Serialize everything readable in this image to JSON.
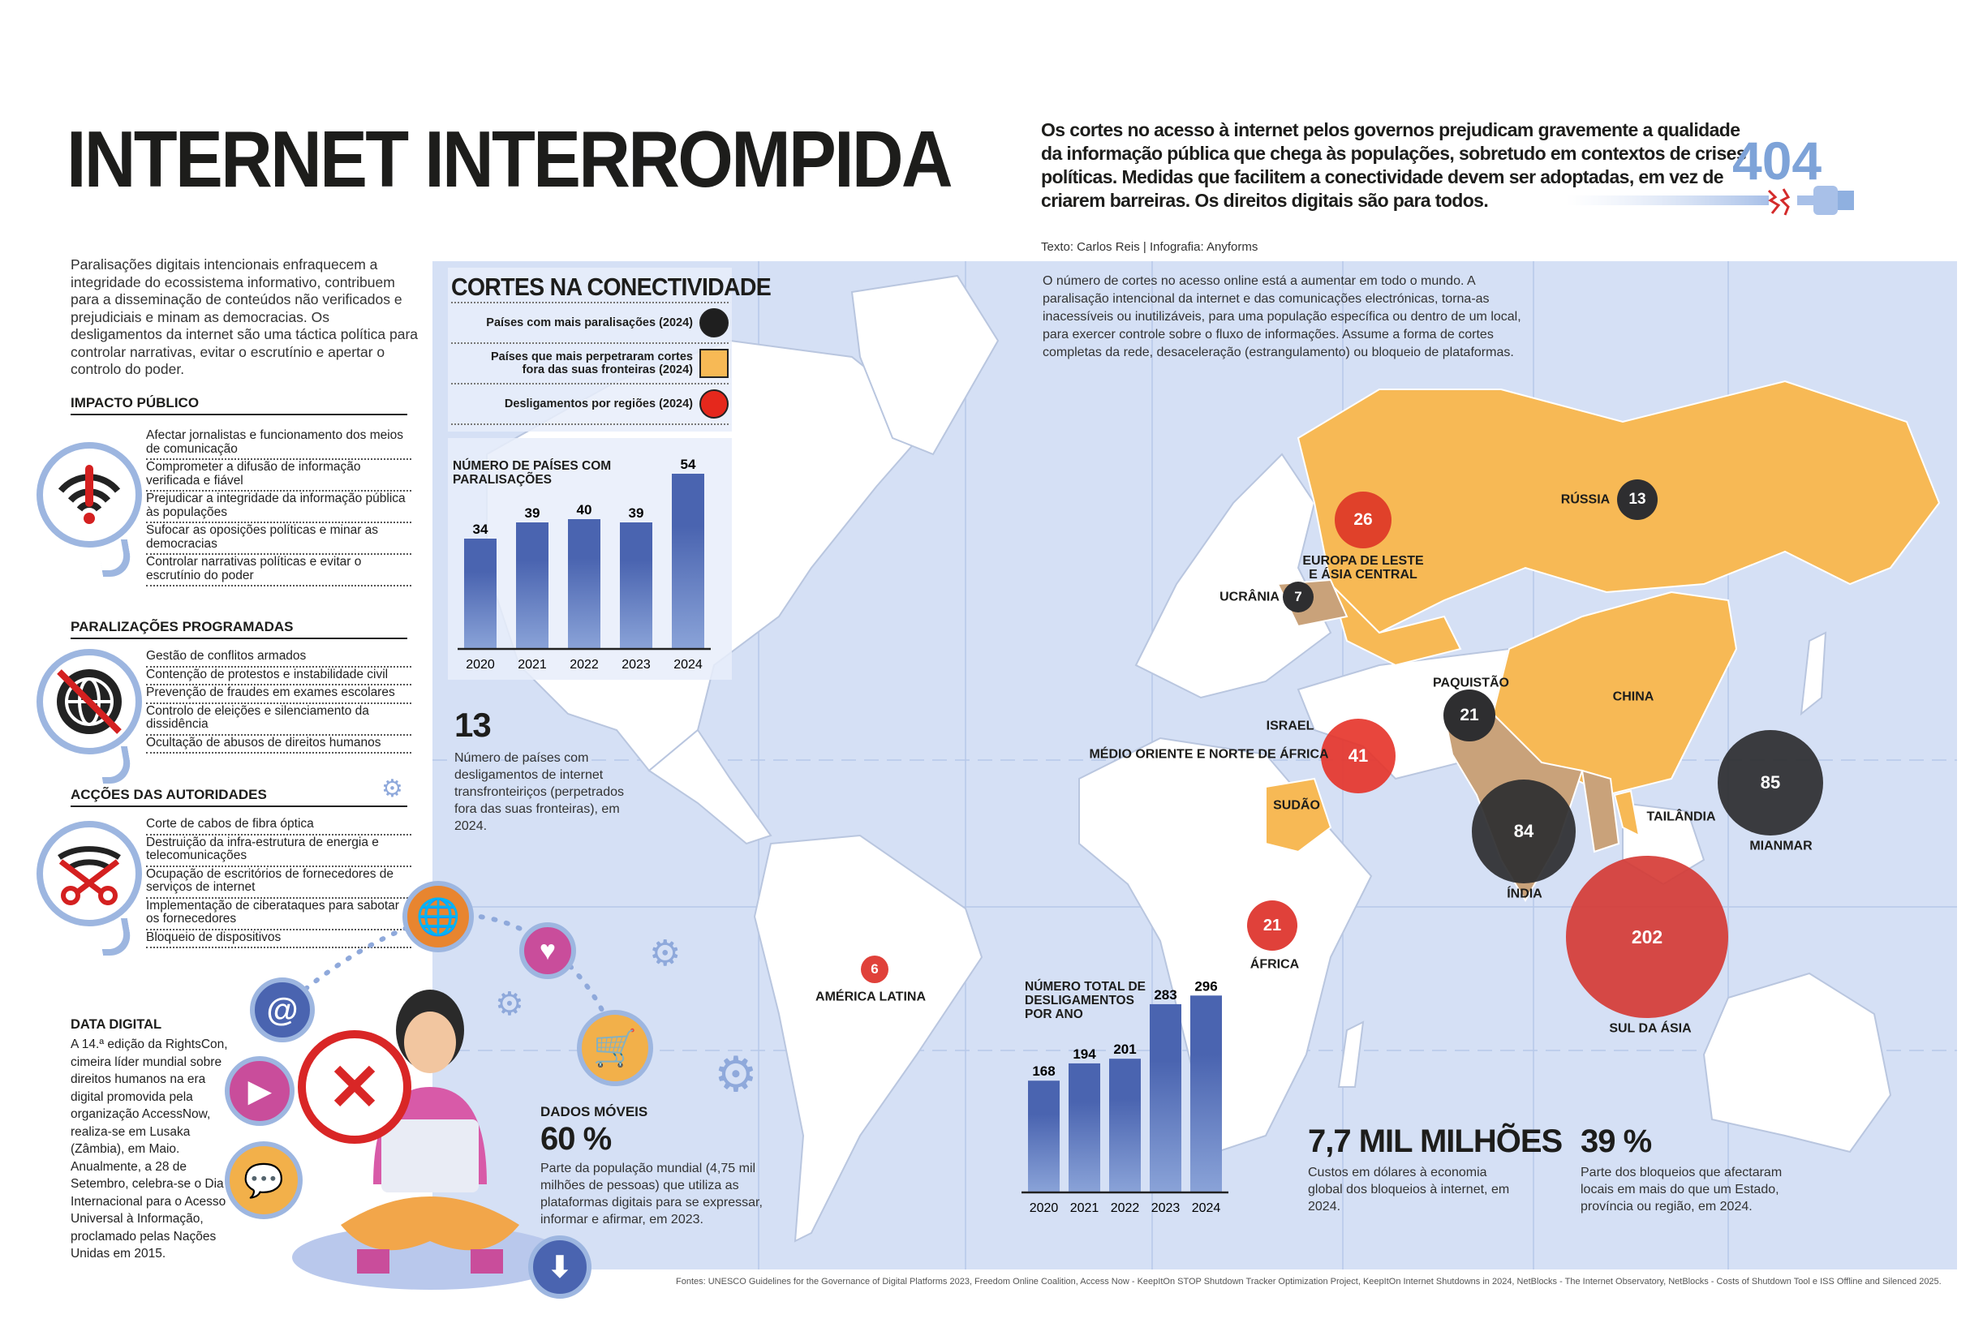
{
  "header": {
    "title": "INTERNET INTERROMPIDA",
    "lead": "Os cortes no acesso à internet pelos governos prejudicam gravemente a qualidade da informação pública que chega às populações, sobretudo em contextos de crises políticas. Medidas que facilitem a conectividade devem ser adoptadas, em vez de criarem barreiras. Os direitos digitais são para todos.",
    "error_code": "404",
    "credits": "Texto: Carlos Reis  |  Infografia: Anyforms"
  },
  "left": {
    "intro": "Paralisações digitais intencionais enfraquecem a integridade do ecossistema informativo, contribuem para a disseminação de conteúdos não verificados e prejudiciais e minam as democracias. Os desligamentos da internet são uma táctica política para controlar narrativas, evitar o escrutínio e apertar o controlo do poder.",
    "sections": [
      {
        "heading": "IMPACTO PÚBLICO",
        "icon": "wifi-alert-icon",
        "items": [
          "Afectar jornalistas e funcionamento dos meios de comunicação",
          "Comprometer a difusão de informação verificada e fiável",
          "Prejudicar a integridade da informação pública às populações",
          "Sufocar as oposições políticas e minar as democracias",
          "Controlar narrativas políticas e evitar o escrutínio do poder"
        ]
      },
      {
        "heading": "PARALIZAÇÕES PROGRAMADAS",
        "icon": "globe-blocked-icon",
        "items": [
          "Gestão de conflitos armados",
          "Contenção de protestos e instabilidade civil",
          "Prevenção de fraudes em exames escolares",
          "Controlo de eleições e silenciamento da dissidência",
          "Ocultação de abusos de direitos humanos"
        ]
      },
      {
        "heading": "ACÇÕES DAS AUTORIDADES",
        "icon": "scissors-wifi-icon",
        "items": [
          "Corte de cabos de fibra óptica",
          "Destruição da infra-estrutura de energia e telecomunicações",
          "Ocupação de escritórios de fornecedores de serviços de internet",
          "Implementação de ciberataques para sabotar os fornecedores",
          "Bloqueio de dispositivos"
        ]
      }
    ],
    "data_digital": {
      "heading": "DATA DIGITAL",
      "text": "A 14.ª edição da RightsCon, cimeira líder mundial sobre direitos humanos na era digital promovida pela organização AccessNow, realiza-se em Lusaka (Zâmbia), em Maio. Anualmente, a 28 de Setembro, celebra-se o Dia Internacional para o Acesso Universal à Informação, proclamado pelas Nações Unidas em 2015."
    }
  },
  "map": {
    "intro": "O número de cortes no acesso online está a aumentar em todo o mundo. A paralisação intencional da internet e das comunicações electrónicas, torna-as inacessíveis ou inutilizáveis, para uma população específica ou dentro de um local, para exercer controle sobre o fluxo de informações. Assume a forma de cortes completas da rede, desaceleração (estrangulamento) ou bloqueio de plataformas.",
    "legend": {
      "title": "CORTES NA CONECTIVIDADE",
      "items": [
        {
          "label": "Países com mais paralisações (2024)",
          "color": "#1f1f1f",
          "shape": "circle"
        },
        {
          "label": "Países que mais perpetraram cortes fora das suas fronteiras (2024)",
          "color": "#f7b955",
          "shape": "square"
        },
        {
          "label": "Desligamentos por regiões (2024)",
          "color": "#e5281c",
          "shape": "circle"
        }
      ]
    },
    "colors": {
      "ocean": "#d5e0f5",
      "land": "#ffffff",
      "perpetrator": "#f7b955",
      "top_country": "#c9a27a",
      "region": "#e0413a",
      "dark": "#2e2e30",
      "bar": "#4a64b0"
    },
    "countries_most_shutdowns": [
      {
        "name": "RÚSSIA",
        "value": "13"
      },
      {
        "name": "UCRÂNIA",
        "value": "7"
      },
      {
        "name": "PAQUISTÃO",
        "value": "21"
      },
      {
        "name": "ÍNDIA",
        "value": "84"
      },
      {
        "name": "MIANMAR",
        "value": "85"
      }
    ],
    "regions": [
      {
        "name": "EUROPA DE LESTE E ÁSIA CENTRAL",
        "value": "26"
      },
      {
        "name": "MÉDIO ORIENTE E NORTE DE ÁFRICA",
        "value": "41"
      },
      {
        "name": "ÁFRICA",
        "value": "21"
      },
      {
        "name": "AMÉRICA LATINA",
        "value": "6"
      },
      {
        "name": "SUL DA ÁSIA",
        "value": "202"
      }
    ],
    "perpetrators": [
      "RÚSSIA",
      "CHINA",
      "ISRAEL",
      "SUDÃO",
      "TAILÂNDIA"
    ],
    "stat_cross_border": {
      "value": "13",
      "text": "Número de países com desligamentos de internet transfronteiriços (perpetrados fora das suas fronteiras), em 2024."
    },
    "stat_mobile": {
      "heading": "DADOS MÓVEIS",
      "value": "60 %",
      "text": "Parte da população mundial (4,75 mil milhões de pessoas) que utiliza as plataformas digitais para se expressar, informar e afirmar, em 2023."
    },
    "stat_cost": {
      "value": "7,7 MIL MILHÕES",
      "text": "Custos em dólares à economia global dos bloqueios à internet, em 2024."
    },
    "stat_share": {
      "value": "39 %",
      "text": "Parte dos bloqueios que afectaram locais em mais do que um Estado, província ou região, em 2024."
    }
  },
  "chart_data": [
    {
      "type": "bar",
      "title": "NÚMERO DE PAÍSES COM PARALISAÇÕES",
      "categories": [
        "2020",
        "2021",
        "2022",
        "2023",
        "2024"
      ],
      "values": [
        34,
        39,
        40,
        39,
        54
      ],
      "xlabel": "",
      "ylabel": ""
    },
    {
      "type": "bar",
      "title": "NÚMERO TOTAL DE DESLIGAMENTOS POR ANO",
      "categories": [
        "2020",
        "2021",
        "2022",
        "2023",
        "2024"
      ],
      "values": [
        168,
        194,
        201,
        283,
        296
      ],
      "xlabel": "",
      "ylabel": ""
    }
  ],
  "sources": "Fontes: UNESCO Guidelines for the Governance of Digital Platforms 2023, Freedom Online Coalition, Access Now - KeepItOn STOP Shutdown Tracker Optimization Project, KeepItOn Internet Shutdowns in 2024, NetBlocks - The Internet Observatory, NetBlocks - Costs of Shutdown Tool e ISS Offline and Silenced 2025."
}
